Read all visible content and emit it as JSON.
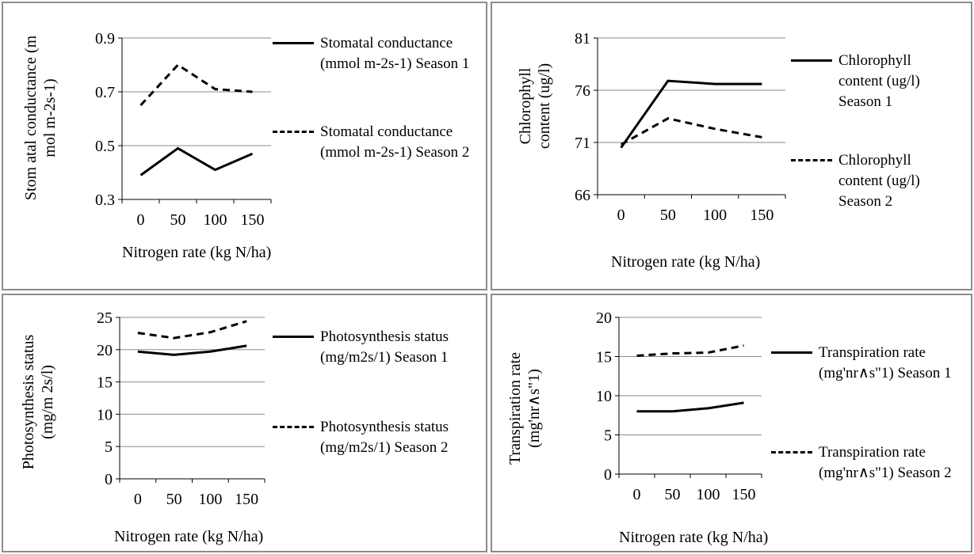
{
  "chart_data": [
    {
      "type": "line",
      "xlabel": "Nitrogen rate (kg N/ha)",
      "ylabel": "Stom atal conductance (m mol m-2s-1)",
      "categories": [
        "0",
        "50",
        "100",
        "150"
      ],
      "yticks": [
        "0.3",
        "0.5",
        "0.7",
        "0.9"
      ],
      "ylim": [
        0.3,
        0.9
      ],
      "grid": true,
      "legend_position": "right",
      "series": [
        {
          "name": "Stomatal conductance (mmol m-2s-1) Season 1",
          "style": "solid",
          "values": [
            0.39,
            0.49,
            0.41,
            0.47
          ]
        },
        {
          "name": "Stomatal conductance (mmol m-2s-1) Season 2",
          "style": "dashed",
          "values": [
            0.65,
            0.8,
            0.71,
            0.7
          ]
        }
      ]
    },
    {
      "type": "line",
      "xlabel": "Nitrogen rate (kg N/ha)",
      "ylabel": "Chlorophyll content (ug/l)",
      "categories": [
        "0",
        "50",
        "100",
        "150"
      ],
      "yticks": [
        "66",
        "71",
        "76",
        "81"
      ],
      "ylim": [
        66,
        81
      ],
      "grid": true,
      "legend_position": "right",
      "series": [
        {
          "name": "Chlorophyll content (ug/l) Season 1",
          "style": "solid",
          "values": [
            70.5,
            76.9,
            76.6,
            76.6
          ]
        },
        {
          "name": "Chlorophyll content (ug/l) Season 2",
          "style": "dashed",
          "values": [
            70.8,
            73.3,
            72.3,
            71.5
          ]
        }
      ]
    },
    {
      "type": "line",
      "xlabel": "Nitrogen rate (kg N/ha)",
      "ylabel": "Photosynthesis status (mg/m 2s/l)",
      "categories": [
        "0",
        "50",
        "100",
        "150"
      ],
      "yticks": [
        "0",
        "5",
        "10",
        "15",
        "20",
        "25"
      ],
      "ylim": [
        0,
        25
      ],
      "grid": true,
      "legend_position": "right",
      "series": [
        {
          "name": "Photosynthesis status (mg/m2s/1) Season 1",
          "style": "solid",
          "values": [
            19.7,
            19.2,
            19.7,
            20.6
          ]
        },
        {
          "name": "Photosynthesis status (mg/m2s/1) Season 2",
          "style": "dashed",
          "values": [
            22.6,
            21.8,
            22.7,
            24.4
          ]
        }
      ]
    },
    {
      "type": "line",
      "xlabel": "Nitrogen rate (kg N/ha)",
      "ylabel": "Transpiration rate (mg'nr∧s\"1)",
      "categories": [
        "0",
        "50",
        "100",
        "150"
      ],
      "yticks": [
        "0",
        "5",
        "10",
        "15",
        "20"
      ],
      "ylim": [
        0,
        20
      ],
      "grid": true,
      "legend_position": "right",
      "series": [
        {
          "name": "Transpiration rate (mg'nr∧s\"1) Season 1",
          "style": "solid",
          "values": [
            8.0,
            8.0,
            8.4,
            9.1
          ]
        },
        {
          "name": "Transpiration rate (mg'nr∧s\"1) Season 2",
          "style": "dashed",
          "values": [
            15.1,
            15.4,
            15.5,
            16.4
          ]
        }
      ]
    }
  ]
}
